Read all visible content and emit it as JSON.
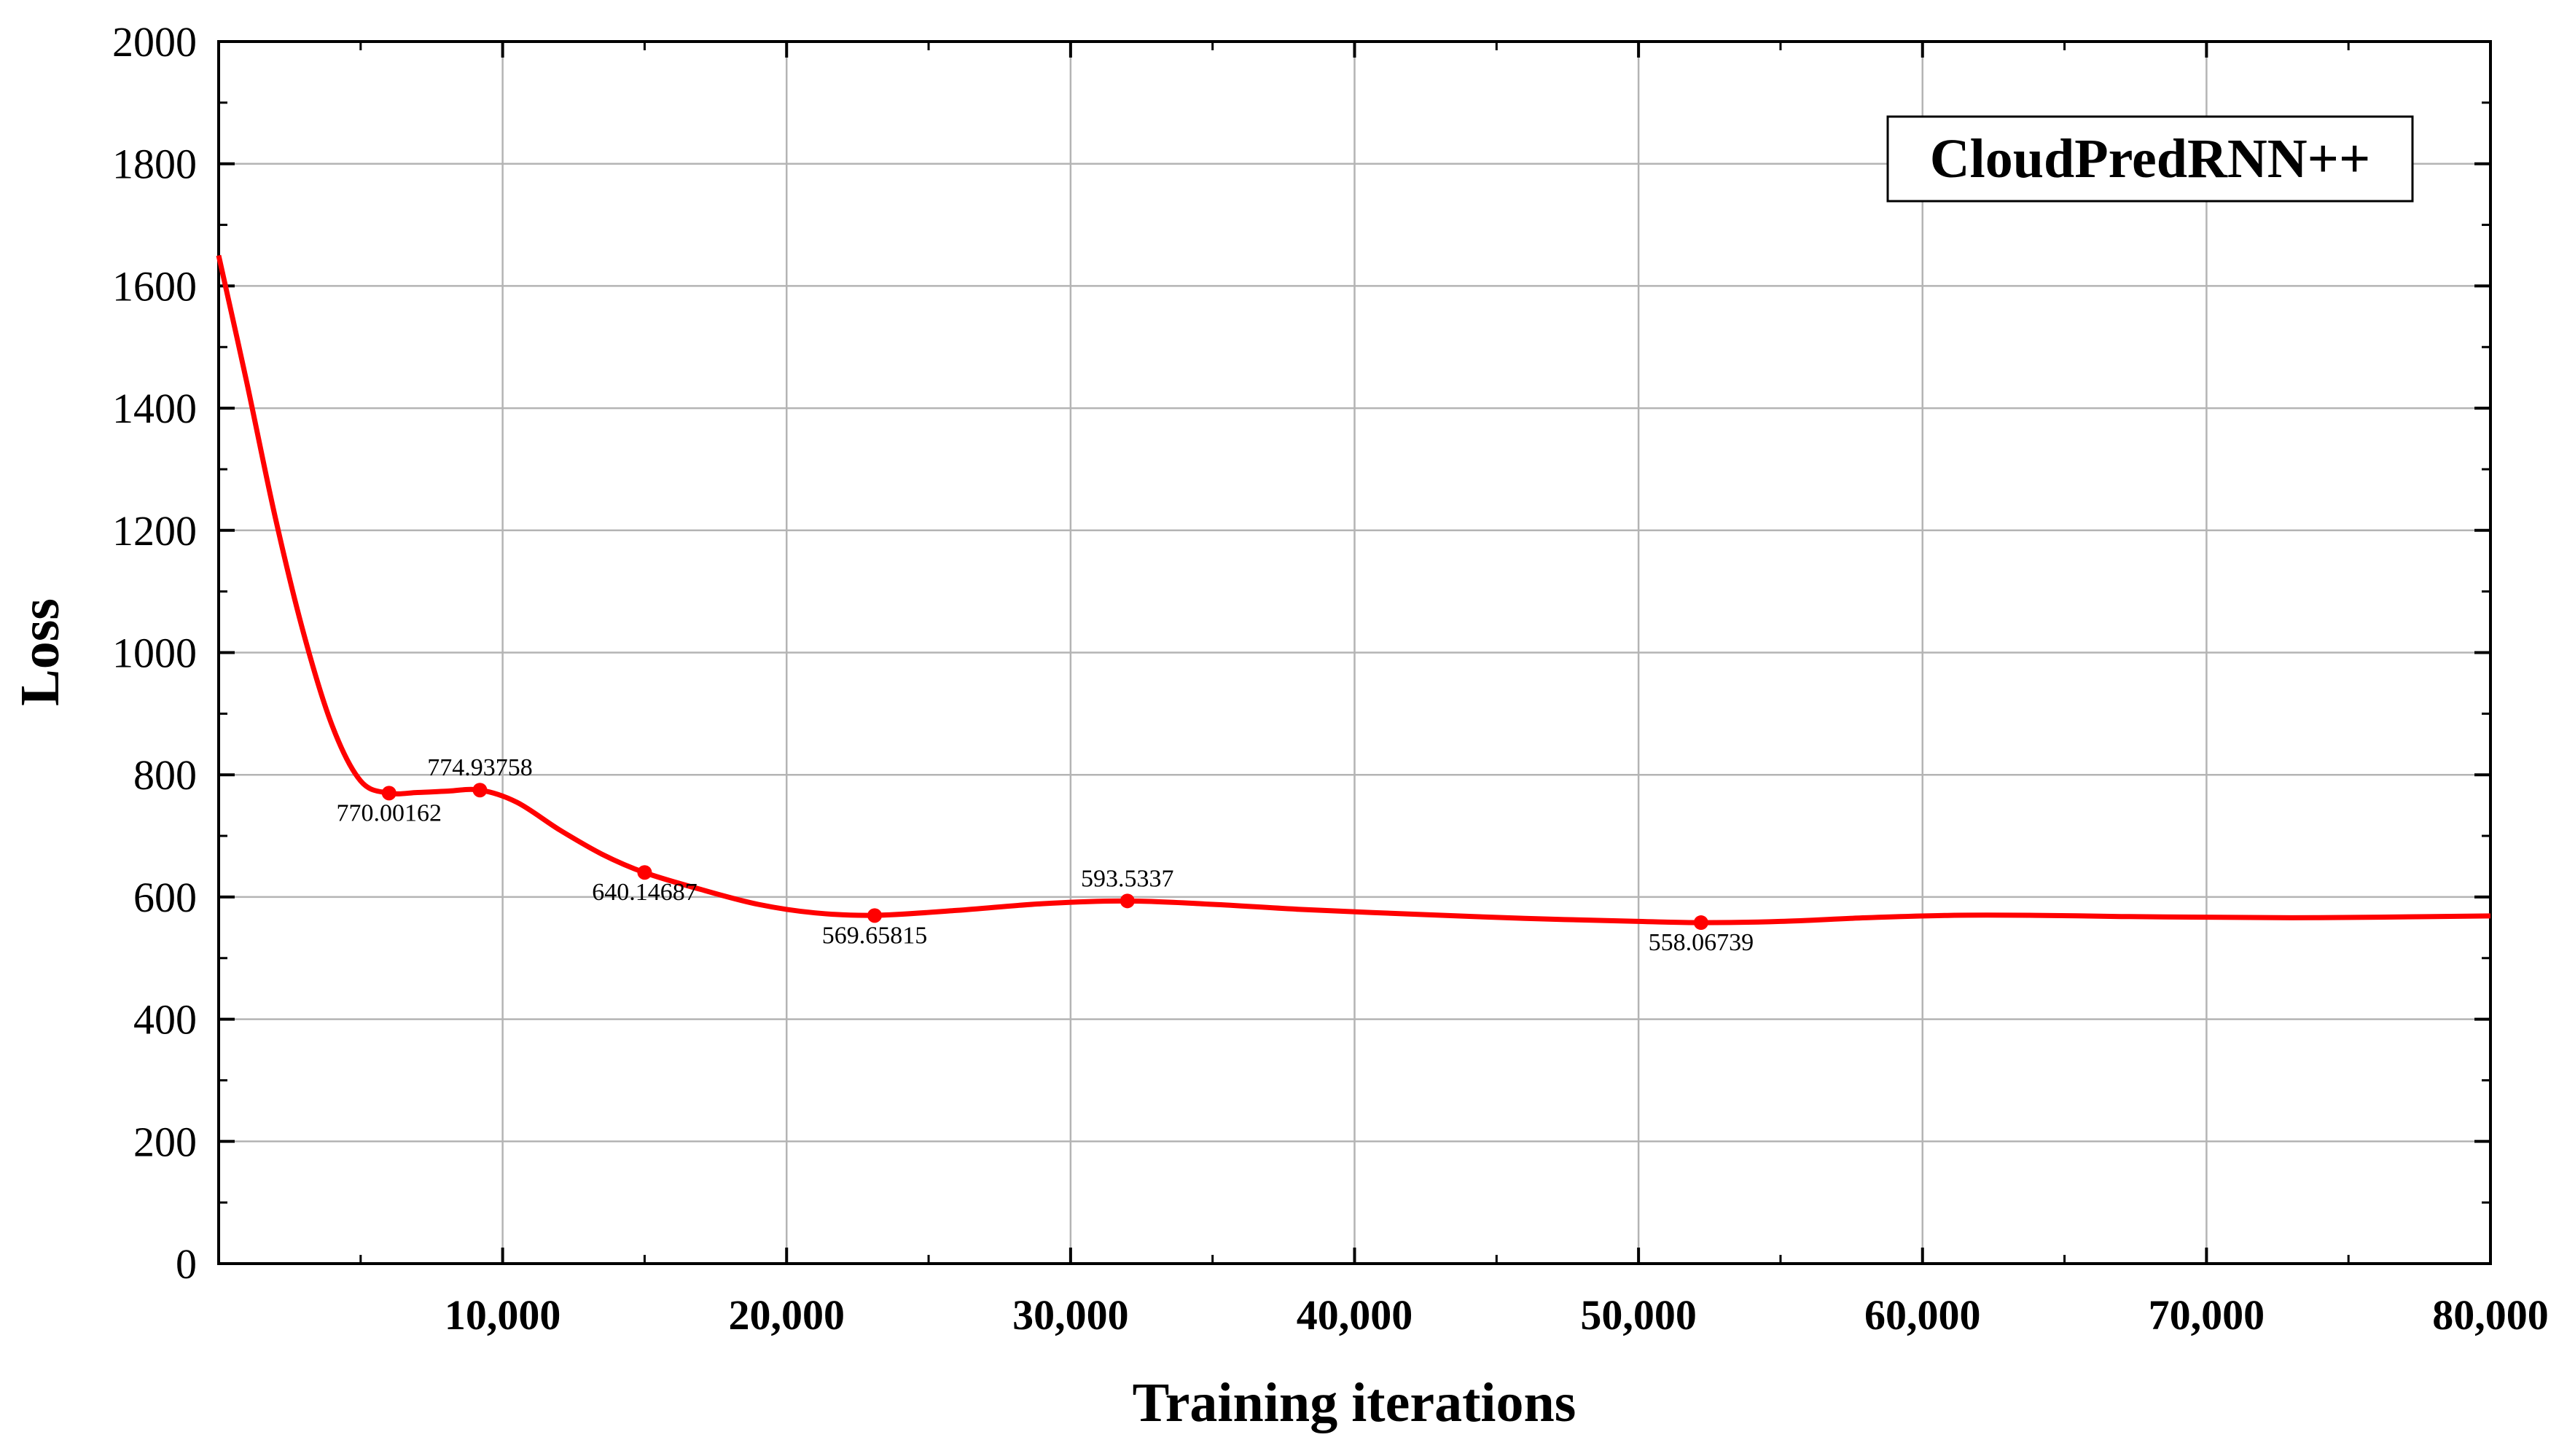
{
  "chart_data": {
    "type": "line",
    "xlabel": "Training iterations",
    "ylabel": "Loss",
    "xlim": [
      0,
      80000
    ],
    "ylim": [
      0,
      2000
    ],
    "grid": true,
    "legend_position": "top-right",
    "legend_text": "CloudPredRNN++",
    "x_tick_values": [
      10000,
      20000,
      30000,
      40000,
      50000,
      60000,
      70000,
      80000
    ],
    "x_tick_labels": [
      "10,000",
      "20,000",
      "30,000",
      "40,000",
      "50,000",
      "60,000",
      "70,000",
      "80,000"
    ],
    "y_tick_values": [
      0,
      200,
      400,
      600,
      800,
      1000,
      1200,
      1400,
      1600,
      1800,
      2000
    ],
    "y_tick_labels": [
      "0",
      "200",
      "400",
      "600",
      "800",
      "1000",
      "1200",
      "1400",
      "1600",
      "1800",
      "2000"
    ],
    "series": [
      {
        "color": "#ff0000",
        "curve": [
          [
            0,
            1650
          ],
          [
            1000,
            1440
          ],
          [
            2000,
            1220
          ],
          [
            3000,
            1030
          ],
          [
            4000,
            880
          ],
          [
            5000,
            790
          ],
          [
            6000,
            770
          ],
          [
            7000,
            771
          ],
          [
            8000,
            773
          ],
          [
            9200,
            775
          ],
          [
            10500,
            755
          ],
          [
            12000,
            710
          ],
          [
            13500,
            670
          ],
          [
            15000,
            640
          ],
          [
            17000,
            612
          ],
          [
            19000,
            588
          ],
          [
            21000,
            574
          ],
          [
            23100,
            570
          ],
          [
            26000,
            578
          ],
          [
            29000,
            589
          ],
          [
            32000,
            593.5
          ],
          [
            35000,
            588
          ],
          [
            38000,
            580
          ],
          [
            42000,
            572
          ],
          [
            46000,
            565
          ],
          [
            50000,
            560
          ],
          [
            52200,
            558
          ],
          [
            55000,
            560
          ],
          [
            58000,
            566
          ],
          [
            61000,
            570
          ],
          [
            64000,
            570
          ],
          [
            67000,
            568
          ],
          [
            70000,
            567
          ],
          [
            73000,
            566
          ],
          [
            76000,
            567
          ],
          [
            80000,
            569
          ]
        ],
        "markers": [
          {
            "x": 6000,
            "y": 770.00162,
            "label": "770.00162",
            "label_pos": "below"
          },
          {
            "x": 9200,
            "y": 774.93758,
            "label": "774.93758",
            "label_pos": "above"
          },
          {
            "x": 15000,
            "y": 640.14687,
            "label": "640.14687",
            "label_pos": "below"
          },
          {
            "x": 23100,
            "y": 569.65815,
            "label": "569.65815",
            "label_pos": "below"
          },
          {
            "x": 32000,
            "y": 593.5337,
            "label": "593.5337",
            "label_pos": "above"
          },
          {
            "x": 52200,
            "y": 558.06739,
            "label": "558.06739",
            "label_pos": "below"
          }
        ]
      }
    ]
  }
}
